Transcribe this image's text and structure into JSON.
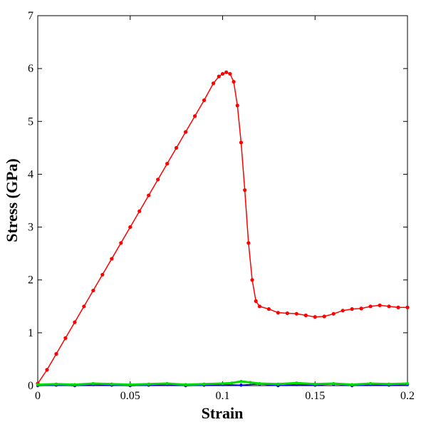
{
  "chart_data": {
    "type": "line",
    "title": "",
    "xlabel": "Strain",
    "ylabel": "Stress (GPa)",
    "xlim": [
      0,
      0.2
    ],
    "ylim": [
      0,
      7
    ],
    "grid": false,
    "legend": "none",
    "x_ticks": [
      "0",
      "0.05",
      "0.1",
      "0.15",
      "0.2"
    ],
    "y_ticks": [
      "0",
      "1",
      "2",
      "3",
      "4",
      "5",
      "6",
      "7"
    ],
    "series": [
      {
        "color": "#ff0000",
        "marker": "circle",
        "points": [
          [
            0.0,
            0.04
          ],
          [
            0.005,
            0.3
          ],
          [
            0.01,
            0.6
          ],
          [
            0.015,
            0.9
          ],
          [
            0.02,
            1.2
          ],
          [
            0.025,
            1.5
          ],
          [
            0.03,
            1.8
          ],
          [
            0.035,
            2.1
          ],
          [
            0.04,
            2.4
          ],
          [
            0.045,
            2.7
          ],
          [
            0.05,
            3.0
          ],
          [
            0.055,
            3.3
          ],
          [
            0.06,
            3.6
          ],
          [
            0.065,
            3.9
          ],
          [
            0.07,
            4.2
          ],
          [
            0.075,
            4.5
          ],
          [
            0.08,
            4.8
          ],
          [
            0.085,
            5.1
          ],
          [
            0.09,
            5.4
          ],
          [
            0.095,
            5.72
          ],
          [
            0.098,
            5.85
          ],
          [
            0.1,
            5.9
          ],
          [
            0.102,
            5.93
          ],
          [
            0.104,
            5.9
          ],
          [
            0.106,
            5.75
          ],
          [
            0.108,
            5.3
          ],
          [
            0.11,
            4.6
          ],
          [
            0.112,
            3.7
          ],
          [
            0.114,
            2.7
          ],
          [
            0.116,
            2.0
          ],
          [
            0.118,
            1.6
          ],
          [
            0.12,
            1.5
          ],
          [
            0.125,
            1.45
          ],
          [
            0.13,
            1.38
          ],
          [
            0.135,
            1.37
          ],
          [
            0.14,
            1.36
          ],
          [
            0.145,
            1.33
          ],
          [
            0.15,
            1.3
          ],
          [
            0.155,
            1.31
          ],
          [
            0.16,
            1.36
          ],
          [
            0.165,
            1.42
          ],
          [
            0.17,
            1.45
          ],
          [
            0.175,
            1.46
          ],
          [
            0.18,
            1.5
          ],
          [
            0.185,
            1.52
          ],
          [
            0.19,
            1.5
          ],
          [
            0.195,
            1.48
          ],
          [
            0.2,
            1.48
          ]
        ]
      },
      {
        "color": "#0000ff",
        "marker": "circle",
        "points": [
          [
            0.0,
            0.0
          ],
          [
            0.01,
            0.01
          ],
          [
            0.02,
            0.0
          ],
          [
            0.03,
            0.02
          ],
          [
            0.04,
            0.01
          ],
          [
            0.05,
            0.0
          ],
          [
            0.06,
            0.01
          ],
          [
            0.07,
            0.02
          ],
          [
            0.08,
            0.0
          ],
          [
            0.09,
            0.01
          ],
          [
            0.1,
            0.02
          ],
          [
            0.11,
            0.01
          ],
          [
            0.12,
            0.03
          ],
          [
            0.13,
            0.0
          ],
          [
            0.14,
            0.02
          ],
          [
            0.15,
            0.01
          ],
          [
            0.16,
            0.03
          ],
          [
            0.17,
            0.0
          ],
          [
            0.18,
            0.02
          ],
          [
            0.19,
            0.01
          ],
          [
            0.2,
            0.02
          ]
        ]
      },
      {
        "color": "#00dd00",
        "marker": "circle",
        "points": [
          [
            0.0,
            0.02
          ],
          [
            0.01,
            0.03
          ],
          [
            0.02,
            0.02
          ],
          [
            0.03,
            0.04
          ],
          [
            0.04,
            0.03
          ],
          [
            0.05,
            0.02
          ],
          [
            0.06,
            0.03
          ],
          [
            0.07,
            0.04
          ],
          [
            0.08,
            0.02
          ],
          [
            0.09,
            0.03
          ],
          [
            0.1,
            0.04
          ],
          [
            0.105,
            0.05
          ],
          [
            0.11,
            0.08
          ],
          [
            0.115,
            0.06
          ],
          [
            0.12,
            0.04
          ],
          [
            0.13,
            0.03
          ],
          [
            0.14,
            0.05
          ],
          [
            0.15,
            0.03
          ],
          [
            0.16,
            0.04
          ],
          [
            0.17,
            0.02
          ],
          [
            0.18,
            0.04
          ],
          [
            0.19,
            0.03
          ],
          [
            0.2,
            0.04
          ]
        ]
      }
    ]
  }
}
